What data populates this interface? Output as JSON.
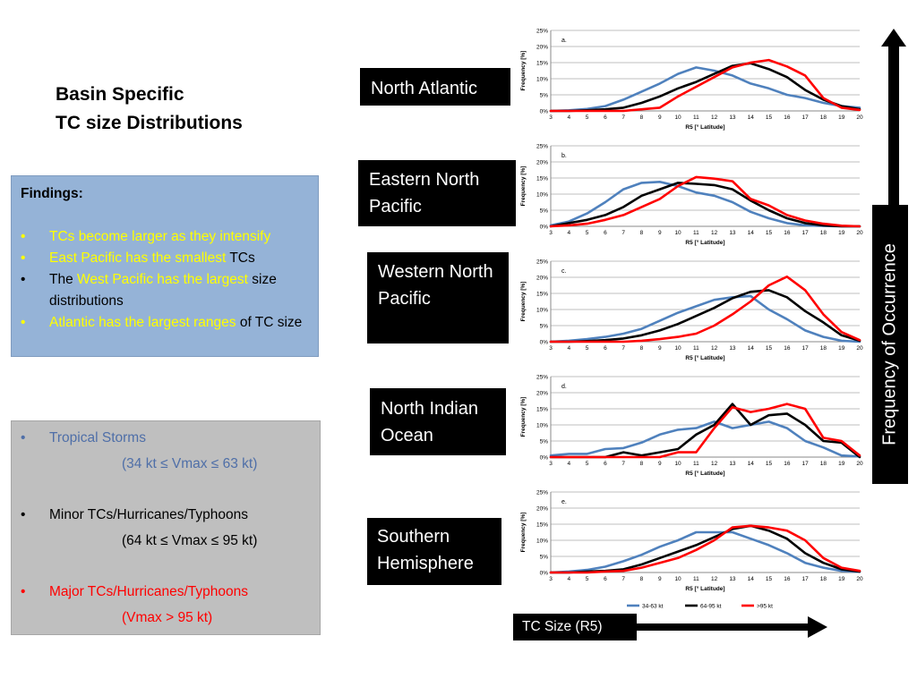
{
  "title": {
    "line1": "Basin Specific",
    "line2": "TC size Distributions"
  },
  "findings": {
    "header": "Findings:",
    "items": [
      {
        "parts": [
          {
            "text": "TCs become larger as they intensify",
            "color": "#ffff00"
          }
        ]
      },
      {
        "parts": [
          {
            "text": "East Pacific has the smallest ",
            "color": "#ffff00"
          },
          {
            "text": "TCs",
            "color": "#000000"
          }
        ]
      },
      {
        "parts": [
          {
            "text": "The ",
            "color": "#000000"
          },
          {
            "text": "West Pacific has the largest",
            "color": "#ffff00"
          },
          {
            "text": " size distributions",
            "color": "#000000"
          }
        ]
      },
      {
        "parts": [
          {
            "text": "Atlantic has the largest ranges",
            "color": "#ffff00"
          },
          {
            "text": " of TC size",
            "color": "#000000"
          }
        ]
      }
    ]
  },
  "storm_categories": [
    {
      "label": "Tropical Storms",
      "range": "(34 kt ≤ Vmax ≤ 63 kt)",
      "color": "#4f6fa8"
    },
    {
      "label": "Minor TCs/Hurricanes/Typhoons",
      "range": "(64 kt ≤ Vmax ≤ 95 kt)",
      "color": "#000000"
    },
    {
      "label": "Major TCs/Hurricanes/Typhoons",
      "range": "(Vmax > 95 kt)",
      "color": "#ff0000"
    }
  ],
  "basins": {
    "north_atlantic": "North Atlantic",
    "eastern_north_pacific": "Eastern North Pacific",
    "western_north_pacific": "Western North Pacific",
    "north_indian_ocean": "North Indian Ocean",
    "southern_hemisphere": "Southern Hemisphere"
  },
  "axis_labels": {
    "frequency": "Frequency of Occurrence",
    "tc_size": "TC Size (R5)"
  },
  "chart_data": [
    {
      "type": "line",
      "panel": "a.",
      "xlabel": "R5 [° Latitude]",
      "ylabel": "Frequency [%]",
      "x": [
        3,
        4,
        5,
        6,
        7,
        8,
        9,
        10,
        11,
        12,
        13,
        14,
        15,
        16,
        17,
        18,
        19,
        20
      ],
      "ylim": [
        0,
        25
      ],
      "yticks": [
        "0%",
        "5%",
        "10%",
        "15%",
        "20%",
        "25%"
      ],
      "grid": true,
      "series": [
        {
          "color": "#4f81bd",
          "values": [
            0,
            0.2,
            0.6,
            1.5,
            3.5,
            6,
            8.5,
            11.5,
            13.5,
            12.5,
            11,
            8.5,
            7,
            5,
            4,
            2.5,
            1.5,
            1
          ]
        },
        {
          "color": "#000000",
          "values": [
            0,
            0,
            0.2,
            0.5,
            1,
            2.5,
            4.5,
            7,
            9,
            11.5,
            14,
            14.8,
            13,
            10.5,
            6.5,
            3.5,
            1.5,
            0.5
          ]
        },
        {
          "color": "#ff0000",
          "values": [
            0,
            0,
            0,
            0,
            0,
            0.5,
            1,
            4.5,
            7.5,
            10.5,
            13.5,
            15,
            15.8,
            13.8,
            11,
            4,
            1,
            0.3
          ]
        }
      ]
    },
    {
      "type": "line",
      "panel": "b.",
      "xlabel": "R5 [° Latitude]",
      "ylabel": "Frequency [%]",
      "x": [
        3,
        4,
        5,
        6,
        7,
        8,
        9,
        10,
        11,
        12,
        13,
        14,
        15,
        16,
        17,
        18,
        19,
        20
      ],
      "ylim": [
        0,
        25
      ],
      "yticks": [
        "0%",
        "5%",
        "10%",
        "15%",
        "20%",
        "25%"
      ],
      "grid": true,
      "series": [
        {
          "color": "#4f81bd",
          "values": [
            0.3,
            1.5,
            4,
            7.5,
            11.5,
            13.5,
            13.8,
            12.5,
            10.5,
            9.5,
            7.5,
            4.5,
            2.5,
            1,
            0.3,
            0.1,
            0,
            0
          ]
        },
        {
          "color": "#000000",
          "values": [
            0,
            1,
            2,
            3.5,
            6,
            9.5,
            11.5,
            13.5,
            13.2,
            12.8,
            11.5,
            8,
            5,
            2.5,
            1,
            0.3,
            0,
            0
          ]
        },
        {
          "color": "#ff0000",
          "values": [
            0,
            0.3,
            0.8,
            2,
            3.5,
            6,
            8.5,
            12.5,
            15.3,
            14.8,
            14,
            8.5,
            6.5,
            3.5,
            1.8,
            0.8,
            0.2,
            0
          ]
        }
      ]
    },
    {
      "type": "line",
      "panel": "c.",
      "xlabel": "R5 [° Latitude]",
      "ylabel": "Frequency [%]",
      "x": [
        3,
        4,
        5,
        6,
        7,
        8,
        9,
        10,
        11,
        12,
        13,
        14,
        15,
        16,
        17,
        18,
        19,
        20
      ],
      "ylim": [
        0,
        25
      ],
      "yticks": [
        "0%",
        "5%",
        "10%",
        "15%",
        "20%",
        "25%"
      ],
      "grid": true,
      "series": [
        {
          "color": "#4f81bd",
          "values": [
            0,
            0.3,
            0.8,
            1.5,
            2.5,
            4,
            6.5,
            9,
            11,
            13,
            13.8,
            14.2,
            10,
            7,
            3.5,
            1.5,
            0.3,
            0
          ]
        },
        {
          "color": "#000000",
          "values": [
            0,
            0,
            0.2,
            0.5,
            1,
            2,
            3.5,
            5.5,
            8,
            10.5,
            13.5,
            15.5,
            16,
            13.8,
            9.5,
            6,
            2,
            0.3
          ]
        },
        {
          "color": "#ff0000",
          "values": [
            0,
            0,
            0,
            0,
            0,
            0.3,
            0.8,
            1.5,
            2.5,
            5,
            8.5,
            12.5,
            17.5,
            20.2,
            16,
            8.5,
            3,
            0.5
          ]
        }
      ]
    },
    {
      "type": "line",
      "panel": "d.",
      "xlabel": "R5 [° Latitude]",
      "ylabel": "Frequency [%]",
      "x": [
        3,
        4,
        5,
        6,
        7,
        8,
        9,
        10,
        11,
        12,
        13,
        14,
        15,
        16,
        17,
        18,
        19,
        20
      ],
      "ylim": [
        0,
        25
      ],
      "yticks": [
        "0%",
        "5%",
        "10%",
        "15%",
        "20%",
        "25%"
      ],
      "grid": true,
      "series": [
        {
          "color": "#4f81bd",
          "values": [
            0.5,
            1,
            1,
            2.5,
            2.8,
            4.5,
            7,
            8.5,
            9,
            11,
            9,
            10,
            11,
            9,
            5,
            3,
            0.5,
            0.2
          ]
        },
        {
          "color": "#000000",
          "values": [
            0,
            0,
            0,
            0,
            1.5,
            0.5,
            1.5,
            2.5,
            7,
            10,
            16.5,
            10,
            13,
            13.5,
            10,
            5,
            4.5,
            0
          ]
        },
        {
          "color": "#ff0000",
          "values": [
            0,
            0,
            0,
            0,
            0,
            0,
            0,
            1.5,
            1.5,
            9,
            15.5,
            14,
            15,
            16.5,
            15,
            6,
            5,
            0.5
          ]
        }
      ]
    },
    {
      "type": "line",
      "panel": "e.",
      "xlabel": "R5 [° Latitude]",
      "ylabel": "Frequency [%]",
      "x": [
        3,
        4,
        5,
        6,
        7,
        8,
        9,
        10,
        11,
        12,
        13,
        14,
        15,
        16,
        17,
        18,
        19,
        20
      ],
      "ylim": [
        0,
        25
      ],
      "yticks": [
        "0%",
        "5%",
        "10%",
        "15%",
        "20%",
        "25%"
      ],
      "grid": true,
      "legend": {
        "position": "bottom",
        "entries": [
          "34-63 kt",
          "64-95 kt",
          ">95 kt"
        ]
      },
      "series": [
        {
          "name": "34-63 kt",
          "color": "#4f81bd",
          "values": [
            0,
            0.3,
            0.8,
            1.8,
            3.5,
            5.5,
            8,
            10,
            12.5,
            12.5,
            12.5,
            10.5,
            8.5,
            6,
            3,
            1.5,
            0.5,
            0.2
          ]
        },
        {
          "name": "64-95 kt",
          "color": "#000000",
          "values": [
            0,
            0,
            0.3,
            0.5,
            1,
            2.5,
            4.5,
            6.5,
            8.5,
            11,
            13.5,
            14.5,
            13,
            10.5,
            6,
            3,
            1,
            0.3
          ]
        },
        {
          "name": ">95 kt",
          "color": "#ff0000",
          "values": [
            0,
            0,
            0,
            0.3,
            0.5,
            1.5,
            3,
            4.5,
            7,
            10,
            14,
            14.5,
            14,
            13,
            10,
            4.5,
            1.5,
            0.5
          ]
        }
      ]
    }
  ]
}
